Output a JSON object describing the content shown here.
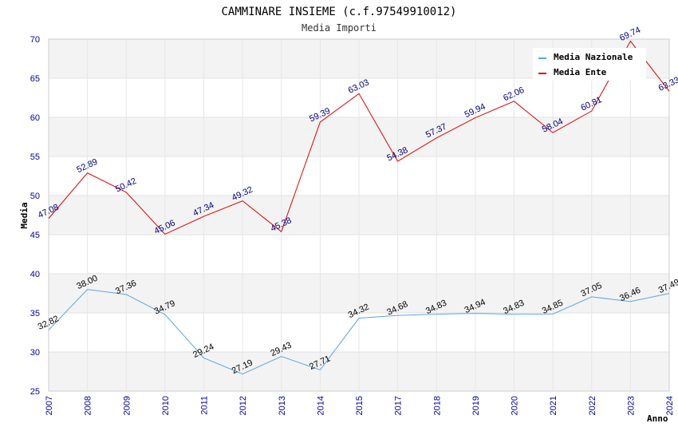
{
  "chart_data": {
    "type": "line",
    "title": "CAMMINARE INSIEME (c.f.97549910012)",
    "subtitle": "Media Importi",
    "xlabel": "Anno",
    "ylabel": "Media",
    "categories": [
      "2007",
      "2008",
      "2009",
      "2010",
      "2011",
      "2012",
      "2013",
      "2014",
      "2015",
      "2017",
      "2018",
      "2019",
      "2020",
      "2021",
      "2022",
      "2023",
      "2024"
    ],
    "ylim": [
      25,
      70
    ],
    "yticks": [
      "25",
      "30",
      "35",
      "40",
      "45",
      "50",
      "55",
      "60",
      "65",
      "70"
    ],
    "grid": true,
    "legend_position": "top-right",
    "series": [
      {
        "name": "Media Nazionale",
        "color": "#5aa6e6",
        "values": [
          32.82,
          38.0,
          37.36,
          34.79,
          29.24,
          27.19,
          29.43,
          27.71,
          34.32,
          34.68,
          34.83,
          34.94,
          34.83,
          34.85,
          37.05,
          36.46,
          37.49
        ],
        "labels": [
          "32.82",
          "38.00",
          "37.36",
          "34.79",
          "29.24",
          "27.19",
          "29.43",
          "27.71",
          "34.32",
          "34.68",
          "34.83",
          "34.94",
          "34.83",
          "34.85",
          "37.05",
          "36.46",
          "37.49"
        ]
      },
      {
        "name": "Media Ente",
        "color": "#e00000",
        "values": [
          47.08,
          52.89,
          50.42,
          45.06,
          47.34,
          49.32,
          45.38,
          59.39,
          63.03,
          54.38,
          57.37,
          59.94,
          62.06,
          58.04,
          60.81,
          69.74,
          63.33
        ],
        "labels": [
          "47.08",
          "52.89",
          "50.42",
          "45.06",
          "47.34",
          "49.32",
          "45.38",
          "59.39",
          "63.03",
          "54.38",
          "57.37",
          "59.94",
          "62.06",
          "58.04",
          "60.81",
          "69.74",
          "63.33"
        ]
      }
    ]
  }
}
